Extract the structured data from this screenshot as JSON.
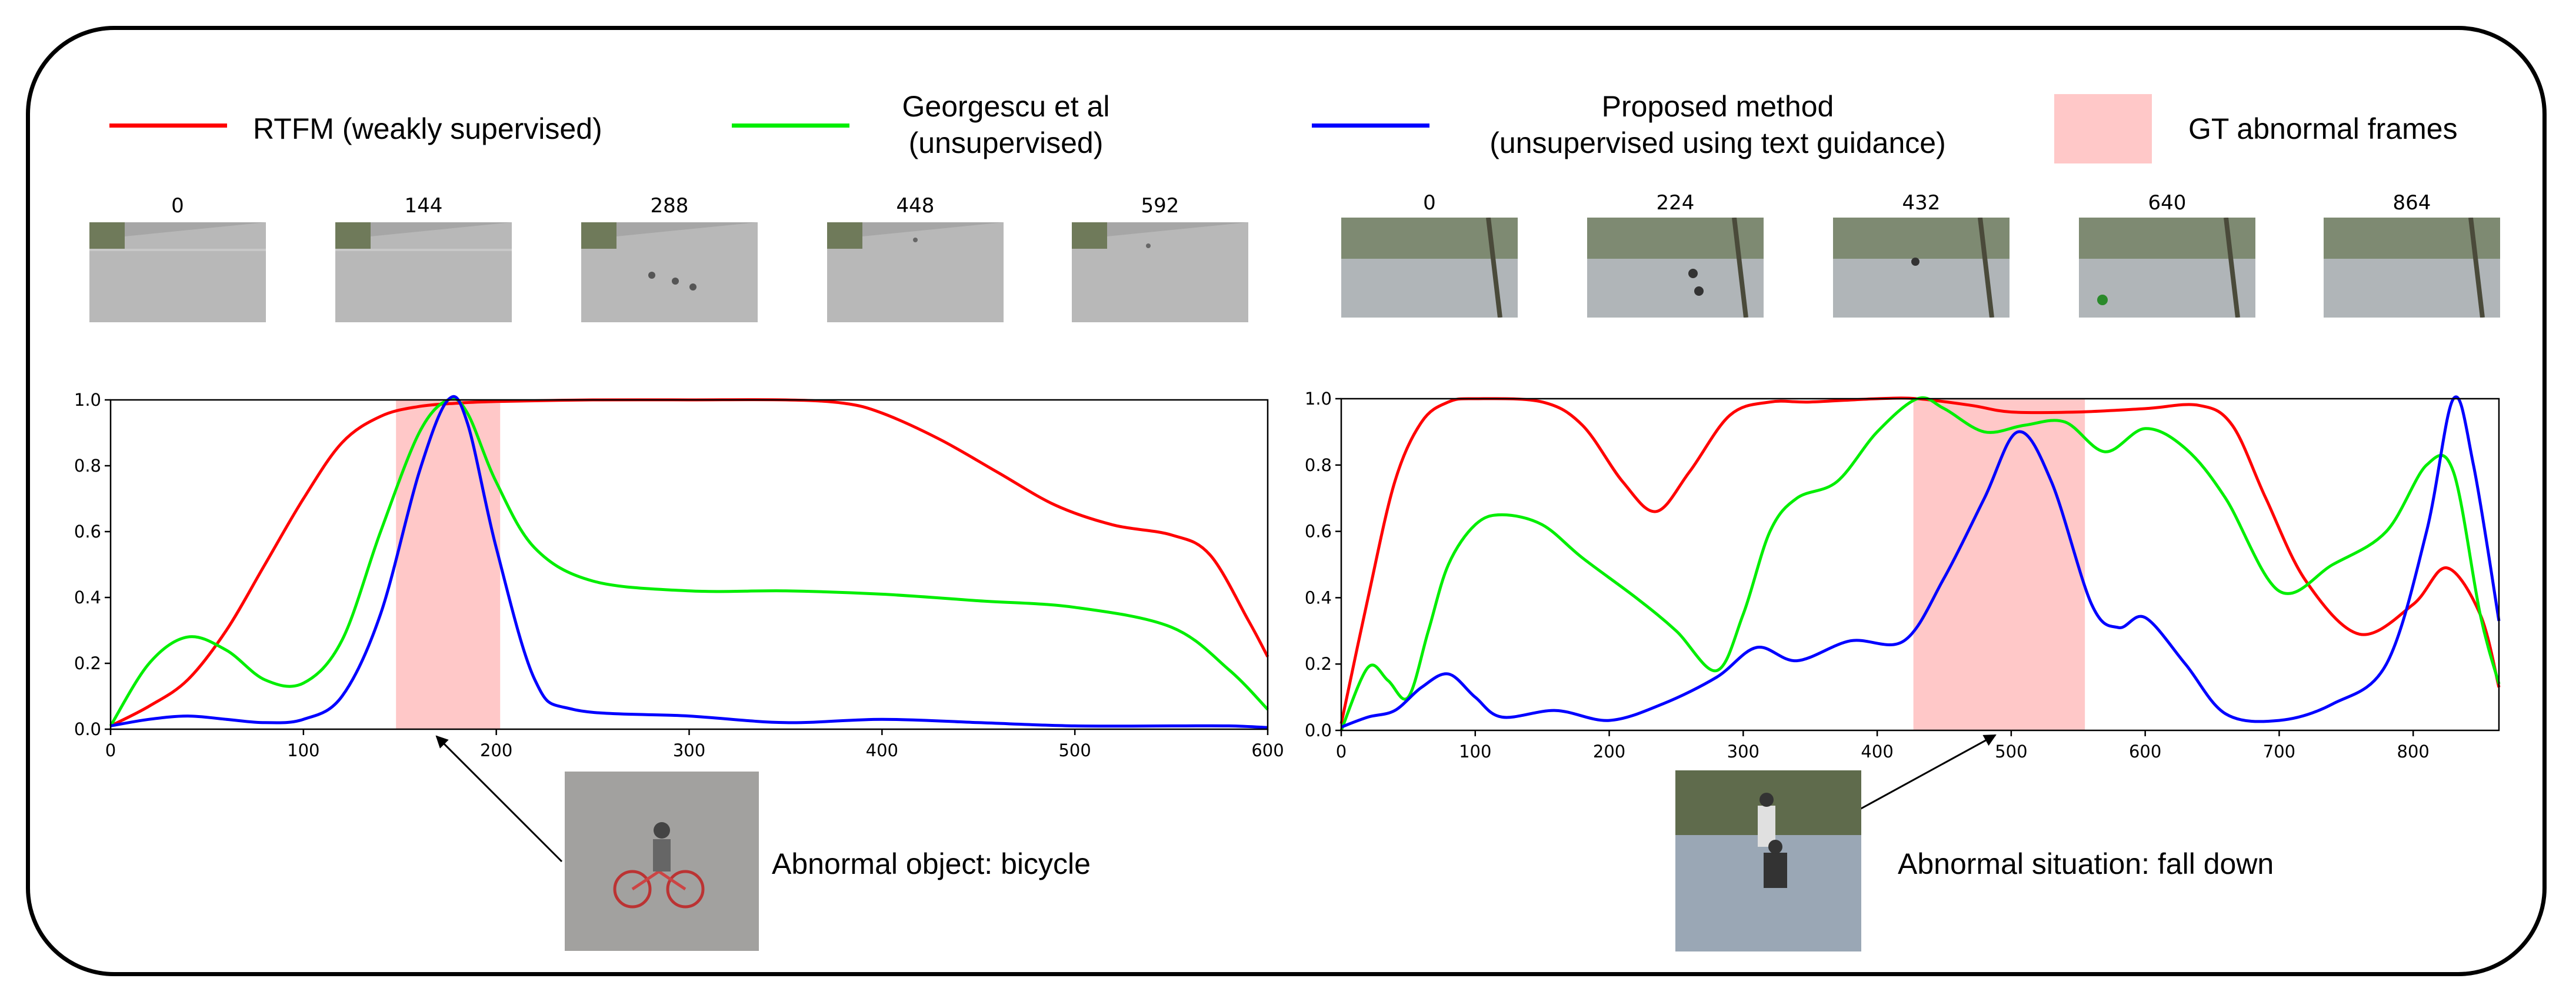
{
  "legend": [
    {
      "label": "RTFM (weakly supervised)",
      "color": "#ff0000"
    },
    {
      "label": "Georgescu et al\n(unsupervised)",
      "color": "#00ee00"
    },
    {
      "label": "Proposed method\n(unsupervised using text guidance)",
      "color": "#0000ff"
    }
  ],
  "gt_legend": {
    "label": "GT abnormal frames",
    "color": "#ffc8c8"
  },
  "left_panel": {
    "thumbnails": [
      "0",
      "144",
      "288",
      "448",
      "592"
    ],
    "annotation": "Abnormal object: bicycle"
  },
  "right_panel": {
    "thumbnails": [
      "0",
      "224",
      "432",
      "640",
      "864"
    ],
    "annotation": "Abnormal situation: fall down"
  },
  "chart_data": [
    {
      "type": "line",
      "xlim": [
        0,
        600
      ],
      "ylim": [
        0,
        1.0
      ],
      "xticks": [
        0,
        100,
        200,
        300,
        400,
        500,
        600
      ],
      "yticks": [
        "0.0",
        "0.2",
        "0.4",
        "0.6",
        "0.8",
        "1.0"
      ],
      "gt_abnormal_span": [
        148,
        202
      ],
      "series": [
        {
          "name": "RTFM (weakly supervised)",
          "color": "#ff0000",
          "x": [
            0,
            20,
            40,
            60,
            80,
            100,
            120,
            140,
            160,
            180,
            200,
            250,
            300,
            350,
            380,
            400,
            430,
            460,
            490,
            520,
            550,
            570,
            590,
            600
          ],
          "y": [
            0.01,
            0.07,
            0.15,
            0.3,
            0.5,
            0.7,
            0.87,
            0.95,
            0.98,
            0.99,
            0.995,
            1.0,
            1.0,
            1.0,
            0.99,
            0.96,
            0.88,
            0.78,
            0.68,
            0.62,
            0.59,
            0.53,
            0.33,
            0.22
          ]
        },
        {
          "name": "Georgescu et al\n(unsupervised)",
          "color": "#00ee00",
          "x": [
            0,
            20,
            40,
            60,
            80,
            100,
            120,
            140,
            160,
            175,
            185,
            200,
            220,
            250,
            300,
            350,
            400,
            450,
            500,
            550,
            580,
            600
          ],
          "y": [
            0.01,
            0.2,
            0.28,
            0.24,
            0.15,
            0.14,
            0.27,
            0.6,
            0.9,
            1.0,
            0.96,
            0.75,
            0.55,
            0.45,
            0.42,
            0.42,
            0.41,
            0.39,
            0.37,
            0.31,
            0.18,
            0.06
          ]
        },
        {
          "name": "Proposed method\n(unsupervised using text guidance)",
          "color": "#0000ff",
          "x": [
            0,
            20,
            40,
            60,
            80,
            100,
            120,
            140,
            160,
            175,
            185,
            200,
            220,
            240,
            300,
            350,
            400,
            450,
            500,
            550,
            580,
            600
          ],
          "y": [
            0.01,
            0.03,
            0.04,
            0.03,
            0.02,
            0.03,
            0.1,
            0.35,
            0.78,
            1.0,
            0.93,
            0.55,
            0.15,
            0.06,
            0.04,
            0.02,
            0.03,
            0.02,
            0.01,
            0.01,
            0.01,
            0.005
          ]
        }
      ]
    },
    {
      "type": "line",
      "xlim": [
        0,
        864
      ],
      "ylim": [
        0,
        1.0
      ],
      "xticks": [
        0,
        100,
        200,
        300,
        400,
        500,
        600,
        700,
        800
      ],
      "yticks": [
        "0.0",
        "0.2",
        "0.4",
        "0.6",
        "0.8",
        "1.0"
      ],
      "gt_abnormal_span": [
        427,
        555
      ],
      "series": [
        {
          "name": "RTFM (weakly supervised)",
          "color": "#ff0000",
          "x": [
            0,
            20,
            40,
            60,
            80,
            100,
            150,
            180,
            210,
            235,
            260,
            290,
            320,
            350,
            400,
            430,
            470,
            500,
            550,
            600,
            640,
            665,
            690,
            720,
            760,
            800,
            825,
            850,
            864
          ],
          "y": [
            0.02,
            0.4,
            0.75,
            0.93,
            0.99,
            1.0,
            0.99,
            0.92,
            0.75,
            0.66,
            0.78,
            0.95,
            0.99,
            0.99,
            1.0,
            1.0,
            0.98,
            0.96,
            0.96,
            0.97,
            0.98,
            0.92,
            0.7,
            0.45,
            0.29,
            0.38,
            0.49,
            0.35,
            0.13
          ]
        },
        {
          "name": "Georgescu et al\n(unsupervised)",
          "color": "#00ee00",
          "x": [
            0,
            20,
            35,
            50,
            65,
            80,
            100,
            120,
            150,
            180,
            220,
            250,
            280,
            300,
            320,
            340,
            370,
            400,
            430,
            450,
            480,
            510,
            540,
            570,
            600,
            630,
            660,
            700,
            740,
            780,
            810,
            830,
            850,
            864
          ],
          "y": [
            0.0,
            0.19,
            0.15,
            0.1,
            0.3,
            0.5,
            0.62,
            0.65,
            0.62,
            0.52,
            0.4,
            0.3,
            0.18,
            0.35,
            0.6,
            0.7,
            0.75,
            0.9,
            1.0,
            0.97,
            0.9,
            0.92,
            0.93,
            0.84,
            0.91,
            0.85,
            0.7,
            0.42,
            0.5,
            0.6,
            0.8,
            0.78,
            0.35,
            0.14
          ]
        },
        {
          "name": "Proposed method\n(unsupervised using text guidance)",
          "color": "#0000ff",
          "x": [
            0,
            20,
            40,
            60,
            80,
            100,
            120,
            160,
            200,
            240,
            280,
            310,
            340,
            380,
            420,
            450,
            480,
            505,
            530,
            560,
            580,
            600,
            630,
            660,
            700,
            740,
            780,
            810,
            830,
            845,
            864
          ],
          "y": [
            0.01,
            0.04,
            0.06,
            0.13,
            0.17,
            0.1,
            0.04,
            0.06,
            0.03,
            0.08,
            0.16,
            0.25,
            0.21,
            0.27,
            0.27,
            0.46,
            0.7,
            0.9,
            0.75,
            0.38,
            0.31,
            0.34,
            0.2,
            0.05,
            0.03,
            0.08,
            0.2,
            0.6,
            1.0,
            0.8,
            0.33
          ]
        }
      ]
    }
  ]
}
